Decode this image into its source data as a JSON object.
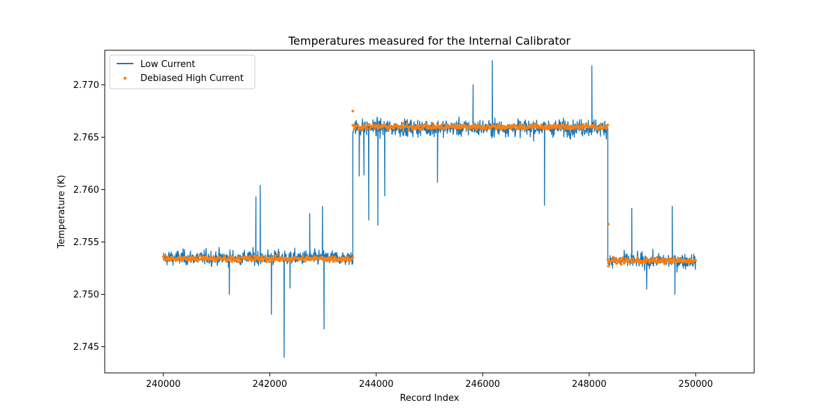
{
  "chart_data": {
    "type": "line",
    "title": "Temperatures measured for the Internal Calibrator",
    "xlabel": "Record Index",
    "ylabel": "Temperature (K)",
    "xlim": [
      238900,
      251100
    ],
    "ylim": [
      2.7425,
      2.7733
    ],
    "xticks": [
      240000,
      242000,
      244000,
      246000,
      248000,
      250000
    ],
    "xtick_labels": [
      "240000",
      "242000",
      "244000",
      "246000",
      "248000",
      "250000"
    ],
    "yticks": [
      2.745,
      2.75,
      2.755,
      2.76,
      2.765,
      2.77
    ],
    "ytick_labels": [
      "2.745",
      "2.750",
      "2.755",
      "2.760",
      "2.765",
      "2.770"
    ],
    "legend_position": "upper-left",
    "grid": false,
    "series": [
      {
        "name": "Low Current",
        "kind": "line",
        "color": "#1f77b4",
        "segments": [
          {
            "x_start": 240000,
            "x_end": 243560,
            "mean": 2.7535,
            "noise": 0.0008
          },
          {
            "x_start": 243560,
            "x_end": 248350,
            "mean": 2.7659,
            "noise": 0.0009
          },
          {
            "x_start": 248350,
            "x_end": 250000,
            "mean": 2.7532,
            "noise": 0.0008
          }
        ],
        "spikes": [
          {
            "x": 241740,
            "y": 2.7593
          },
          {
            "x": 241820,
            "y": 2.7604
          },
          {
            "x": 242030,
            "y": 2.7481
          },
          {
            "x": 242270,
            "y": 2.744
          },
          {
            "x": 242750,
            "y": 2.7577
          },
          {
            "x": 242990,
            "y": 2.7584
          },
          {
            "x": 243020,
            "y": 2.7467
          },
          {
            "x": 241240,
            "y": 2.75
          },
          {
            "x": 242380,
            "y": 2.7506
          },
          {
            "x": 243680,
            "y": 2.7613
          },
          {
            "x": 243770,
            "y": 2.7614
          },
          {
            "x": 243860,
            "y": 2.7571
          },
          {
            "x": 244030,
            "y": 2.7566
          },
          {
            "x": 244160,
            "y": 2.7594
          },
          {
            "x": 245150,
            "y": 2.7607
          },
          {
            "x": 245820,
            "y": 2.77
          },
          {
            "x": 246180,
            "y": 2.7723
          },
          {
            "x": 247160,
            "y": 2.7585
          },
          {
            "x": 248050,
            "y": 2.7718
          },
          {
            "x": 248440,
            "y": 2.7525
          },
          {
            "x": 248800,
            "y": 2.7582
          },
          {
            "x": 249080,
            "y": 2.7505
          },
          {
            "x": 249560,
            "y": 2.7584
          },
          {
            "x": 249610,
            "y": 2.75
          }
        ]
      },
      {
        "name": "Debiased High Current",
        "kind": "scatter",
        "color": "#ff7f0e",
        "segments": [
          {
            "x_start": 240000,
            "x_end": 243560,
            "mean": 2.7534,
            "noise": 0.00022
          },
          {
            "x_start": 243560,
            "x_end": 248350,
            "mean": 2.766,
            "noise": 0.00022
          },
          {
            "x_start": 248350,
            "x_end": 250000,
            "mean": 2.7532,
            "noise": 0.00022
          }
        ],
        "outliers": [
          {
            "x": 243560,
            "y": 2.7675
          },
          {
            "x": 248360,
            "y": 2.7567
          },
          {
            "x": 248360,
            "y": 2.7527
          }
        ]
      }
    ]
  }
}
